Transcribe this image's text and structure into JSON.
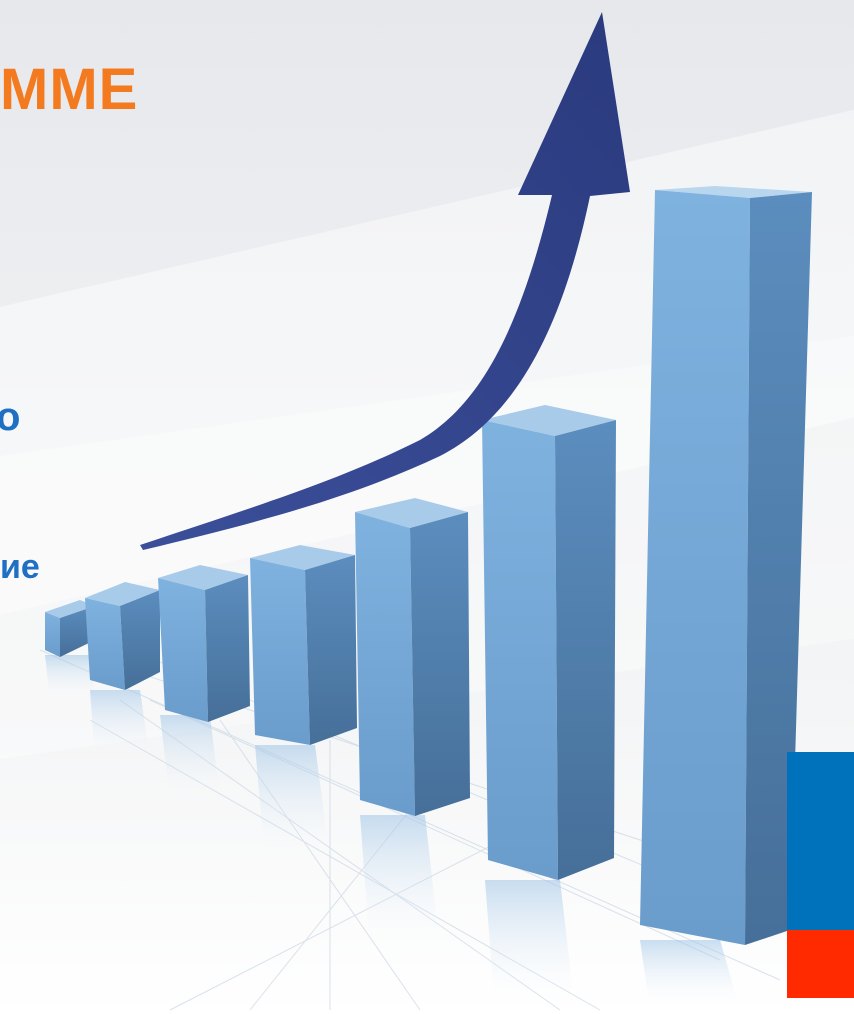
{
  "slide": {
    "title_fragment": "ММЕ",
    "text_fragment_1": "о",
    "text_fragment_2": "ие"
  },
  "colors": {
    "title": "#f47a1f",
    "text": "#1f6fc2",
    "bar_front": "#6fa6d6",
    "bar_side": "#4f81b3",
    "bar_top": "#a9cbea",
    "arrow": "#2e3f86",
    "flag_blue": "#0072bc",
    "flag_red": "#ff2a00"
  },
  "illustration": {
    "type": "3d-bar-growth-with-arrow",
    "bar_count": 7,
    "arrow_direction": "up"
  }
}
